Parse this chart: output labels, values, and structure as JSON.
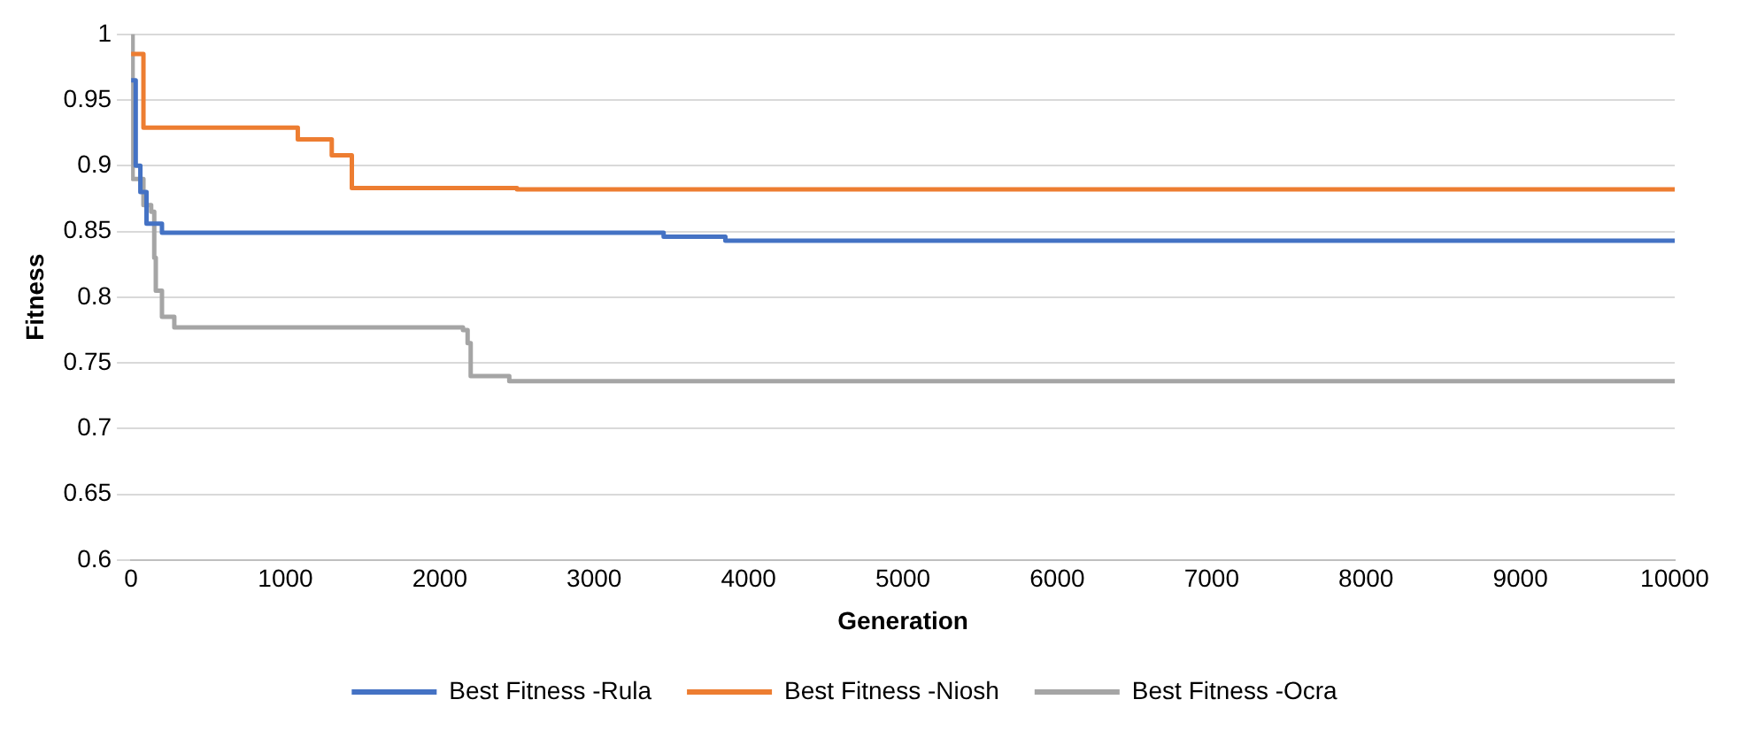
{
  "chart_data": {
    "type": "step",
    "xlabel": "Generation",
    "ylabel": "Fitness",
    "xlim": [
      0,
      10000
    ],
    "xticks": [
      0,
      1000,
      2000,
      3000,
      4000,
      5000,
      6000,
      7000,
      8000,
      9000,
      10000
    ],
    "ylim": [
      0.6,
      1
    ],
    "yticks": [
      0.6,
      0.65,
      0.7,
      0.75,
      0.8,
      0.85,
      0.9,
      0.95,
      1
    ],
    "grid": "y",
    "legend": "bottom",
    "marker": "none",
    "line_style": "solid",
    "series": [
      {
        "name": "Best Fitness -Rula",
        "color": "#4472c4",
        "x": [
          0,
          30,
          60,
          100,
          200,
          3450,
          3850,
          10000
        ],
        "values": [
          0.965,
          0.9,
          0.88,
          0.856,
          0.849,
          0.846,
          0.843,
          0.843
        ]
      },
      {
        "name": "Best Fitness -Niosh",
        "color": "#ed7d31",
        "x": [
          0,
          80,
          1080,
          1300,
          1430,
          2500,
          10000
        ],
        "values": [
          0.985,
          0.929,
          0.92,
          0.908,
          0.883,
          0.882,
          0.882
        ]
      },
      {
        "name": "Best Fitness -Ocra",
        "color": "#a5a5a5",
        "x": [
          0,
          10,
          80,
          130,
          150,
          160,
          200,
          280,
          2150,
          2180,
          2200,
          2450,
          10000
        ],
        "values": [
          1,
          0.89,
          0.87,
          0.865,
          0.83,
          0.805,
          0.785,
          0.777,
          0.775,
          0.765,
          0.74,
          0.736,
          0.736
        ]
      }
    ]
  }
}
